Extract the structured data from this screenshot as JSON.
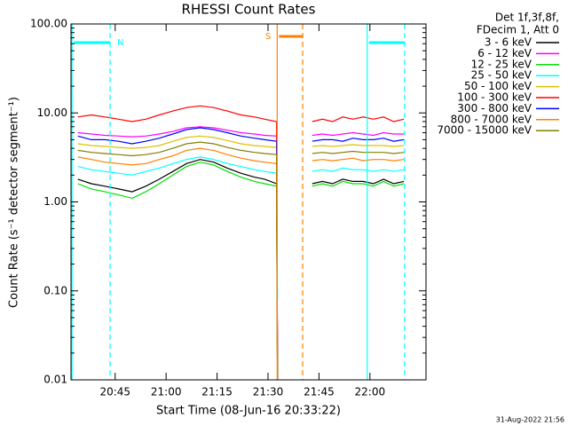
{
  "chart_data": {
    "type": "line",
    "title": "RHESSI Count Rates",
    "xlabel": "Start Time (08-Jun-16 20:33:22)",
    "ylabel": "Count Rate (s⁻¹ detector segment⁻¹)",
    "legend_header": [
      "Det 1f,3f,8f,",
      "FDecim 1, Att 0"
    ],
    "footer": "31-Aug-2022 21:56",
    "log_y": true,
    "xlim": [
      1232,
      1336.5
    ],
    "ylim": [
      0.01,
      100
    ],
    "xticks": [
      {
        "value": 1245,
        "label": "20:45"
      },
      {
        "value": 1260,
        "label": "21:00"
      },
      {
        "value": 1275,
        "label": "21:15"
      },
      {
        "value": 1290,
        "label": "21:30"
      },
      {
        "value": 1305,
        "label": "21:45"
      },
      {
        "value": 1320,
        "label": "22:00"
      }
    ],
    "yticks": [
      {
        "value": 0.01,
        "label": "0.01"
      },
      {
        "value": 0.1,
        "label": "0.10"
      },
      {
        "value": 1,
        "label": "1.00"
      },
      {
        "value": 10,
        "label": "10.00"
      },
      {
        "value": 100,
        "label": "100.00"
      }
    ],
    "x": [
      1234,
      1238,
      1242,
      1246,
      1250,
      1254,
      1258,
      1262,
      1266,
      1270,
      1274,
      1278,
      1282,
      1286,
      1289,
      1292.5,
      1292.8,
      1296,
      1303,
      1306,
      1309,
      1312,
      1315,
      1318,
      1321,
      1324,
      1327,
      1330
    ],
    "series": [
      {
        "name": "3 - 6 keV",
        "color": "#000000",
        "values": [
          1.8,
          1.6,
          1.5,
          1.4,
          1.3,
          1.5,
          1.8,
          2.2,
          2.7,
          3,
          2.8,
          2.4,
          2.1,
          1.9,
          1.8,
          1.6,
          0.01,
          null,
          1.6,
          1.7,
          1.6,
          1.8,
          1.7,
          1.7,
          1.6,
          1.8,
          1.6,
          1.7
        ]
      },
      {
        "name": "6 - 12 keV",
        "color": "#ff00ff",
        "values": [
          6,
          5.8,
          5.6,
          5.5,
          5.4,
          5.5,
          5.8,
          6.2,
          6.8,
          7,
          6.8,
          6.4,
          6,
          5.8,
          5.6,
          5.5,
          0.02,
          null,
          5.6,
          5.8,
          5.6,
          5.8,
          6,
          5.8,
          5.6,
          6,
          5.8,
          5.8
        ]
      },
      {
        "name": "12 - 25 keV",
        "color": "#00e000",
        "values": [
          1.6,
          1.4,
          1.3,
          1.2,
          1.1,
          1.3,
          1.6,
          2,
          2.5,
          2.8,
          2.6,
          2.2,
          1.9,
          1.7,
          1.6,
          1.5,
          0.01,
          null,
          1.5,
          1.6,
          1.5,
          1.7,
          1.6,
          1.6,
          1.5,
          1.7,
          1.5,
          1.6
        ]
      },
      {
        "name": "25 - 50 keV",
        "color": "#00ffff",
        "values": [
          2.5,
          2.3,
          2.2,
          2.1,
          2,
          2.2,
          2.4,
          2.7,
          3,
          3.2,
          3,
          2.7,
          2.5,
          2.3,
          2.2,
          2.1,
          0.08,
          null,
          2.2,
          2.3,
          2.2,
          2.4,
          2.3,
          2.3,
          2.2,
          2.3,
          2.2,
          2.3
        ]
      },
      {
        "name": "50 - 100 keV",
        "color": "#e0c000",
        "values": [
          4.5,
          4.3,
          4.2,
          4.1,
          4,
          4.1,
          4.3,
          4.8,
          5.3,
          5.5,
          5.3,
          4.9,
          4.5,
          4.3,
          4.2,
          4.1,
          0.01,
          null,
          4.2,
          4.3,
          4.2,
          4.3,
          4.4,
          4.3,
          4.3,
          4.3,
          4.2,
          4.3
        ]
      },
      {
        "name": "100 - 300 keV",
        "color": "#ff0000",
        "values": [
          9,
          9.5,
          9,
          8.5,
          8,
          8.5,
          9.5,
          10.5,
          11.5,
          12,
          11.5,
          10.5,
          9.5,
          9,
          8.5,
          8,
          0.01,
          null,
          8,
          8.5,
          8,
          9,
          8.5,
          9,
          8.5,
          9,
          8,
          8.5
        ]
      },
      {
        "name": "300 - 800 keV",
        "color": "#0000ff",
        "values": [
          5.5,
          5,
          5,
          4.8,
          4.5,
          4.8,
          5.2,
          5.8,
          6.5,
          6.8,
          6.5,
          6,
          5.5,
          5.2,
          5,
          4.8,
          0.01,
          null,
          4.8,
          5,
          5,
          4.8,
          5.2,
          5,
          5,
          5.2,
          4.8,
          5
        ]
      },
      {
        "name": "800 - 7000 keV",
        "color": "#ff8000",
        "values": [
          3.2,
          3,
          2.8,
          2.7,
          2.6,
          2.7,
          3,
          3.3,
          3.8,
          4,
          3.8,
          3.4,
          3.1,
          2.9,
          2.8,
          2.7,
          0.01,
          null,
          2.9,
          3,
          2.9,
          3,
          3.1,
          2.9,
          3,
          3,
          2.9,
          3
        ]
      },
      {
        "name": "7000 - 15000 keV",
        "color": "#808000",
        "values": [
          3.8,
          3.6,
          3.5,
          3.4,
          3.3,
          3.4,
          3.6,
          4,
          4.5,
          4.7,
          4.5,
          4.1,
          3.8,
          3.6,
          3.5,
          3.4,
          0.01,
          null,
          3.5,
          3.6,
          3.5,
          3.6,
          3.7,
          3.6,
          3.6,
          3.6,
          3.5,
          3.6
        ]
      }
    ],
    "intervals": [
      {
        "label": "N",
        "start": 1232.3,
        "end": 1243.5,
        "color": "#00ffff"
      },
      {
        "label": "S",
        "start": 1292.7,
        "end": 1300.2,
        "color": "#ff8000"
      },
      {
        "start": 1319.2,
        "end": 1330.2,
        "color": "#00ffff"
      }
    ]
  }
}
